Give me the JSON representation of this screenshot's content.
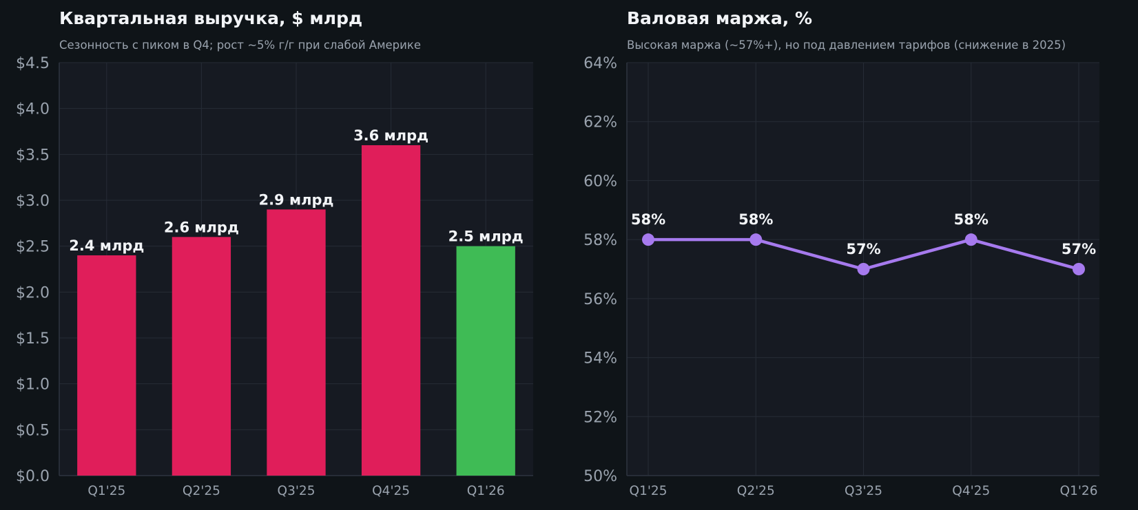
{
  "colors": {
    "page_bg": "#0f1418",
    "plot_bg": "#161a22",
    "grid": "#262c36",
    "bar_default": "#e01e5a",
    "bar_highlight": "#3fbb55",
    "line": "#a67aee"
  },
  "chart_data": [
    {
      "type": "bar",
      "title": "Квартальная выручка, $ млрд",
      "subtitle": "Сезонность с пиком в Q4; рост ~5% г/г при слабой Америке",
      "xlabel": "",
      "ylabel": "",
      "categories": [
        "Q1'25",
        "Q2'25",
        "Q3'25",
        "Q4'25",
        "Q1'26"
      ],
      "values": [
        2.4,
        2.6,
        2.9,
        3.6,
        2.5
      ],
      "data_labels": [
        "2.4 млрд",
        "2.6 млрд",
        "2.9 млрд",
        "3.6 млрд",
        "2.5 млрд"
      ],
      "bar_colors": [
        "#e01e5a",
        "#e01e5a",
        "#e01e5a",
        "#e01e5a",
        "#3fbb55"
      ],
      "ylim": [
        0,
        4.5
      ],
      "yticks": [
        0,
        0.5,
        1.0,
        1.5,
        2.0,
        2.5,
        3.0,
        3.5,
        4.0,
        4.5
      ],
      "ytick_labels": [
        "$0.0",
        "$0.5",
        "$1.0",
        "$1.5",
        "$2.0",
        "$2.5",
        "$3.0",
        "$3.5",
        "$4.0",
        "$4.5"
      ],
      "grid": true
    },
    {
      "type": "line",
      "title": "Валовая маржа, %",
      "subtitle": "Высокая маржа (~57%+), но под давлением тарифов (снижение в 2025)",
      "xlabel": "",
      "ylabel": "",
      "categories": [
        "Q1'25",
        "Q2'25",
        "Q3'25",
        "Q4'25",
        "Q1'26"
      ],
      "values": [
        58,
        58,
        57,
        58,
        57
      ],
      "data_labels": [
        "58%",
        "58%",
        "57%",
        "58%",
        "57%"
      ],
      "ylim": [
        50,
        64
      ],
      "yticks": [
        50,
        52,
        54,
        56,
        58,
        60,
        62,
        64
      ],
      "ytick_labels": [
        "50%",
        "52%",
        "54%",
        "56%",
        "58%",
        "60%",
        "62%",
        "64%"
      ],
      "grid": true
    }
  ]
}
